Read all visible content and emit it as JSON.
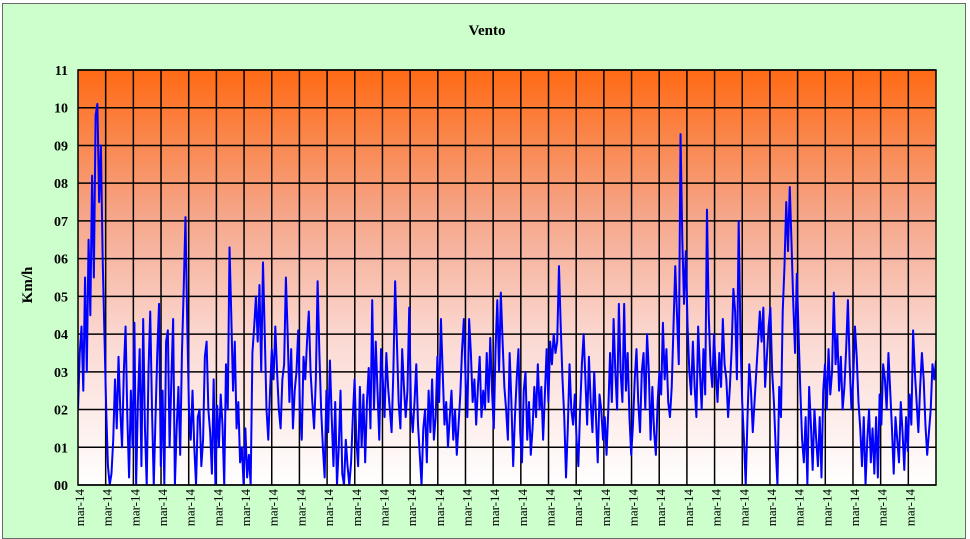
{
  "chart_data": {
    "type": "line",
    "title": "Vento",
    "xlabel": "",
    "ylabel": "Km/h",
    "ylim": [
      0,
      11
    ],
    "y_tick_labels": [
      "00",
      "01",
      "02",
      "03",
      "04",
      "05",
      "06",
      "07",
      "08",
      "09",
      "10",
      "11"
    ],
    "x_tick_labels": [
      "mar-14",
      "mar-14",
      "mar-14",
      "mar-14",
      "mar-14",
      "mar-14",
      "mar-14",
      "mar-14",
      "mar-14",
      "mar-14",
      "mar-14",
      "mar-14",
      "mar-14",
      "mar-14",
      "mar-14",
      "mar-14",
      "mar-14",
      "mar-14",
      "mar-14",
      "mar-14",
      "mar-14",
      "mar-14",
      "mar-14",
      "mar-14",
      "mar-14",
      "mar-14",
      "mar-14",
      "mar-14",
      "mar-14",
      "mar-14",
      "mar-14"
    ],
    "grid": true,
    "background": "vertical gradient orange to white",
    "series": [
      {
        "color": "#0000ff",
        "values": [
          2.0,
          3.5,
          4.2,
          2.5,
          5.5,
          3.0,
          6.5,
          4.5,
          8.2,
          5.5,
          9.8,
          10.1,
          7.5,
          9.0,
          6.0,
          4.0,
          2.0,
          0.5,
          0.0,
          0.3,
          1.2,
          2.8,
          1.5,
          3.4,
          2.0,
          1.0,
          3.0,
          4.2,
          1.8,
          0.2,
          2.5,
          1.0,
          4.3,
          0.0,
          2.2,
          3.6,
          0.5,
          4.4,
          1.5,
          0.0,
          3.0,
          4.6,
          2.0,
          0.0,
          1.8,
          3.5,
          4.8,
          0.5,
          2.5,
          0.0,
          3.8,
          4.1,
          1.0,
          2.8,
          4.4,
          0.0,
          1.5,
          2.6,
          0.8,
          3.5,
          5.2,
          7.1,
          4.3,
          2.0,
          1.2,
          2.5,
          1.0,
          0.0,
          1.8,
          2.0,
          0.5,
          1.2,
          3.4,
          3.8,
          2.0,
          1.4,
          0.3,
          2.8,
          0.0,
          2.1,
          1.0,
          2.4,
          1.6,
          0.0,
          3.2,
          2.0,
          6.3,
          4.5,
          2.5,
          3.8,
          1.5,
          2.2,
          0.6,
          1.0,
          0.0,
          1.5,
          0.2,
          0.8,
          0.0,
          3.5,
          4.2,
          5.0,
          3.8,
          5.3,
          3.0,
          5.9,
          4.0,
          2.0,
          1.2,
          2.5,
          3.6,
          2.8,
          4.2,
          3.0,
          2.0,
          1.5,
          2.8,
          3.2,
          5.5,
          4.0,
          2.2,
          3.6,
          1.5,
          2.5,
          3.0,
          4.1,
          2.0,
          1.2,
          3.4,
          2.8,
          3.8,
          4.6,
          3.0,
          2.2,
          1.5,
          2.8,
          5.4,
          3.5,
          2.0,
          1.0,
          0.2,
          2.5,
          1.4,
          3.3,
          1.8,
          0.5,
          2.2,
          0.0,
          1.0,
          2.5,
          0.3,
          0.0,
          1.2,
          0.5,
          0.0,
          0.6,
          1.8,
          2.8,
          1.2,
          0.5,
          2.6,
          1.0,
          2.4,
          0.6,
          2.2,
          3.1,
          1.5,
          4.9,
          2.0,
          3.8,
          2.5,
          1.2,
          3.6,
          2.8,
          1.8,
          3.5,
          2.6,
          2.0,
          1.4,
          3.0,
          5.4,
          3.8,
          2.2,
          1.5,
          3.6,
          2.6,
          1.8,
          2.5,
          4.7,
          2.0,
          1.4,
          2.2,
          3.2,
          1.6,
          0.8,
          0.0,
          1.5,
          2.0,
          0.6,
          2.5,
          1.4,
          2.8,
          1.2,
          1.8,
          3.4,
          2.2,
          4.4,
          3.0,
          1.6,
          2.2,
          1.0,
          1.8,
          2.5,
          1.2,
          2.0,
          0.8,
          1.6,
          2.4,
          3.6,
          4.4,
          2.8,
          1.8,
          4.4,
          3.5,
          2.2,
          2.8,
          1.6,
          2.6,
          3.4,
          1.8,
          2.5,
          2.0,
          3.5,
          2.2,
          3.9,
          2.5,
          1.5,
          3.6,
          4.9,
          3.0,
          5.1,
          3.8,
          2.6,
          2.0,
          1.2,
          3.5,
          2.2,
          0.5,
          1.8,
          2.8,
          3.6,
          1.4,
          0.6,
          2.5,
          3.0,
          1.2,
          2.2,
          0.8,
          1.5,
          2.6,
          1.8,
          3.2,
          2.0,
          2.6,
          1.2,
          2.4,
          3.6,
          2.2,
          3.8,
          3.2,
          4.0,
          3.5,
          3.8,
          5.8,
          4.2,
          2.8,
          1.8,
          0.2,
          1.5,
          3.2,
          2.0,
          1.6,
          2.4,
          1.2,
          0.5,
          2.0,
          3.2,
          4.0,
          2.8,
          1.6,
          3.4,
          2.2,
          1.4,
          3.0,
          1.8,
          0.6,
          2.4,
          2.0,
          1.2,
          1.8,
          0.8,
          2.0,
          3.5,
          2.2,
          4.4,
          3.0,
          2.0,
          4.8,
          3.0,
          2.2,
          4.8,
          2.5,
          3.5,
          1.8,
          0.8,
          1.6,
          2.8,
          3.6,
          2.2,
          1.4,
          3.0,
          3.5,
          2.0,
          4.0,
          3.0,
          1.2,
          2.6,
          1.4,
          0.8,
          2.2,
          3.0,
          2.4,
          4.3,
          2.8,
          3.6,
          2.2,
          1.8,
          2.6,
          4.2,
          5.8,
          4.5,
          3.2,
          9.3,
          6.5,
          4.8,
          6.2,
          4.2,
          3.0,
          2.4,
          3.8,
          2.6,
          1.8,
          4.2,
          3.0,
          2.0,
          3.6,
          2.4,
          7.3,
          4.5,
          3.2,
          2.6,
          4.0,
          3.0,
          2.2,
          3.5,
          2.6,
          4.4,
          3.2,
          2.8,
          1.8,
          2.6,
          3.6,
          5.2,
          4.6,
          2.8,
          7.0,
          4.0,
          2.2,
          1.2,
          0.0,
          1.8,
          3.2,
          2.5,
          1.4,
          2.2,
          3.0,
          3.8,
          4.6,
          3.8,
          4.7,
          2.6,
          3.4,
          4.2,
          4.7,
          3.0,
          2.2,
          1.0,
          0.0,
          2.6,
          1.8,
          4.6,
          5.8,
          7.5,
          6.2,
          7.9,
          6.4,
          4.8,
          3.5,
          5.6,
          4.0,
          2.5,
          1.2,
          0.6,
          1.8,
          0.0,
          2.6,
          1.6,
          0.4,
          2.0,
          1.2,
          0.5,
          1.8,
          0.2,
          2.5,
          3.2,
          2.0,
          3.6,
          2.4,
          3.0,
          5.1,
          3.2,
          4.0,
          2.5,
          3.4,
          2.0,
          2.6,
          3.6,
          4.9,
          3.2,
          2.0,
          2.8,
          4.2,
          3.4,
          2.2,
          1.5,
          0.5,
          1.8,
          0.0,
          1.2,
          2.0,
          0.6,
          1.5,
          0.3,
          1.8,
          0.2,
          2.4,
          1.6,
          3.2,
          2.8,
          2.0,
          3.5,
          2.5,
          1.5,
          0.3,
          1.8,
          1.2,
          0.6,
          2.2,
          1.4,
          0.4,
          1.8,
          0.9,
          2.4,
          1.6,
          4.1,
          3.0,
          2.2,
          1.4,
          2.6,
          3.5,
          2.8,
          1.6,
          0.8,
          1.4,
          2.0,
          3.2,
          2.8,
          3.3
        ]
      }
    ]
  }
}
